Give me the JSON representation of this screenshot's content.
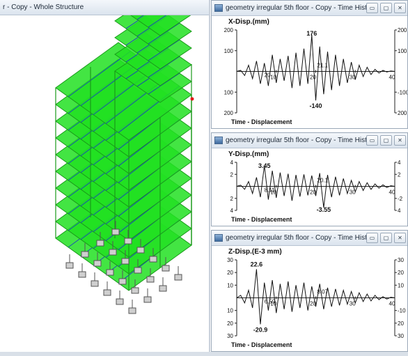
{
  "left_pane": {
    "title": "r - Copy - Whole Structure"
  },
  "window_buttons": {
    "minimize": "▭",
    "maximize": "▢",
    "close": "✕"
  },
  "colors": {
    "structure_fill": "#22e022",
    "structure_edge": "#1a9a1a",
    "brace": "#1633c8",
    "support": "#555555"
  },
  "chart_data": [
    {
      "type": "line",
      "window_title": "geometry irregular 5th floor - Copy - Time History ...",
      "ylabel": "X-Disp.(mm)",
      "xlabel": "Time - Displacement",
      "y_ticks_left": [
        "200",
        "100",
        "100",
        "200"
      ],
      "y_ticks_right": [
        "200",
        "100",
        "-100",
        "200"
      ],
      "x_ticks": [
        "10",
        "20",
        "30",
        "40"
      ],
      "xlim": [
        0,
        40
      ],
      "ylim": [
        -200,
        200
      ],
      "max_label": "176",
      "min_label": "-140",
      "mid_label": "21.1",
      "mid_label2": "20",
      "x": [
        0,
        1,
        2,
        3,
        4,
        5,
        6,
        7,
        8,
        9,
        10,
        11,
        12,
        13,
        14,
        15,
        16,
        17,
        18,
        19,
        20,
        21,
        22,
        23,
        24,
        25,
        26,
        27,
        28,
        29,
        30,
        31,
        32,
        33,
        34,
        35,
        36,
        37,
        38,
        39,
        40
      ],
      "y": [
        0,
        5,
        -20,
        30,
        -35,
        50,
        -60,
        40,
        -70,
        80,
        -55,
        60,
        -45,
        75,
        -80,
        90,
        -70,
        110,
        -60,
        176,
        -140,
        120,
        -110,
        95,
        -90,
        80,
        -70,
        60,
        -55,
        45,
        -40,
        30,
        -25,
        20,
        -15,
        10,
        -8,
        5,
        -3,
        2,
        0
      ]
    },
    {
      "type": "line",
      "window_title": "geometry irregular 5th floor - Copy - Time History ...",
      "ylabel": "Y-Disp.(mm)",
      "xlabel": "Time - Displacement",
      "y_ticks_left": [
        "4",
        "2",
        "2",
        "4"
      ],
      "y_ticks_right": [
        "4",
        "2",
        "-2",
        "4"
      ],
      "x_ticks": [
        "10",
        "20",
        "30",
        "40"
      ],
      "xlim": [
        0,
        40
      ],
      "ylim": [
        -4,
        4
      ],
      "max_label": "3.45",
      "min_label": "-3.55",
      "mid_label": "20.1",
      "mid_label2": "8.11",
      "x": [
        0,
        1,
        2,
        3,
        4,
        5,
        6,
        7,
        8,
        9,
        10,
        11,
        12,
        13,
        14,
        15,
        16,
        17,
        18,
        19,
        20,
        21,
        22,
        23,
        24,
        25,
        26,
        27,
        28,
        29,
        30,
        31,
        32,
        33,
        34,
        35,
        36,
        37,
        38,
        39,
        40
      ],
      "y": [
        0,
        0.2,
        -0.5,
        0.8,
        -1.2,
        1.5,
        -1.8,
        3.45,
        -2.2,
        2.6,
        -1.9,
        2.3,
        -1.6,
        2.1,
        -2.4,
        1.9,
        -1.7,
        2.0,
        -1.5,
        1.8,
        -1.6,
        2.2,
        -3.55,
        1.9,
        -1.8,
        1.6,
        -1.5,
        1.3,
        -1.2,
        1.0,
        -0.9,
        0.8,
        -0.7,
        0.6,
        -0.5,
        0.4,
        -0.3,
        0.25,
        -0.2,
        0.1,
        0
      ]
    },
    {
      "type": "line",
      "window_title": "geometry irregular 5th floor - Copy - Time History ...",
      "ylabel": "Z-Disp.(E-3 mm)",
      "xlabel": "Time - Displacement",
      "y_ticks_left": [
        "30",
        "20",
        "10",
        "10",
        "20",
        "30"
      ],
      "y_ticks_right": [
        "30",
        "20",
        "10",
        "-10",
        "20",
        "30"
      ],
      "x_ticks": [
        "10",
        "20",
        "30",
        "40"
      ],
      "xlim": [
        0,
        40
      ],
      "ylim": [
        -30,
        30
      ],
      "max_label": "22.6",
      "min_label": "-20.9",
      "mid_label": "8.07",
      "mid_label2": "6.59",
      "x": [
        0,
        1,
        2,
        3,
        4,
        5,
        6,
        7,
        8,
        9,
        10,
        11,
        12,
        13,
        14,
        15,
        16,
        17,
        18,
        19,
        20,
        21,
        22,
        23,
        24,
        25,
        26,
        27,
        28,
        29,
        30,
        31,
        32,
        33,
        34,
        35,
        36,
        37,
        38,
        39,
        40
      ],
      "y": [
        0,
        2,
        -4,
        6,
        -8,
        22.6,
        -20.9,
        12,
        -10,
        14,
        -12,
        11,
        -9,
        13,
        -11,
        10,
        -8,
        12,
        -10,
        9,
        -7,
        11,
        -9,
        8,
        -7,
        7,
        -6,
        6,
        -5,
        5,
        -4,
        4,
        -3,
        3,
        -2.5,
        2,
        -1.5,
        1,
        -1,
        0.5,
        0
      ]
    }
  ]
}
